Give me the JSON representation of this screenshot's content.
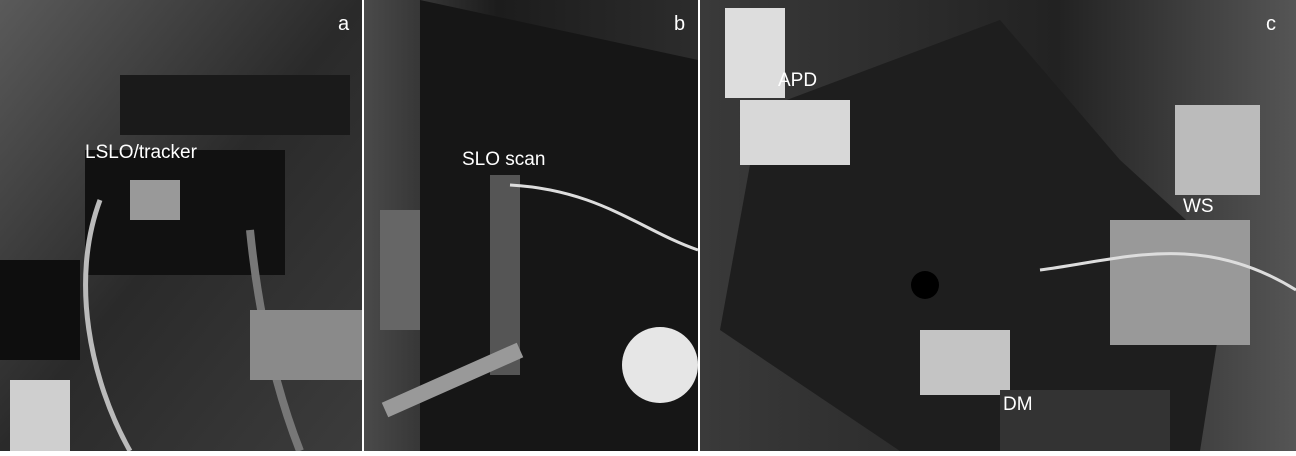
{
  "panels": [
    {
      "letter": "a",
      "labels": [
        "LSLO/tracker"
      ]
    },
    {
      "letter": "b",
      "labels": [
        "SLO scan"
      ]
    },
    {
      "letter": "c",
      "labels": [
        "APD",
        "WS",
        "DM"
      ]
    }
  ]
}
